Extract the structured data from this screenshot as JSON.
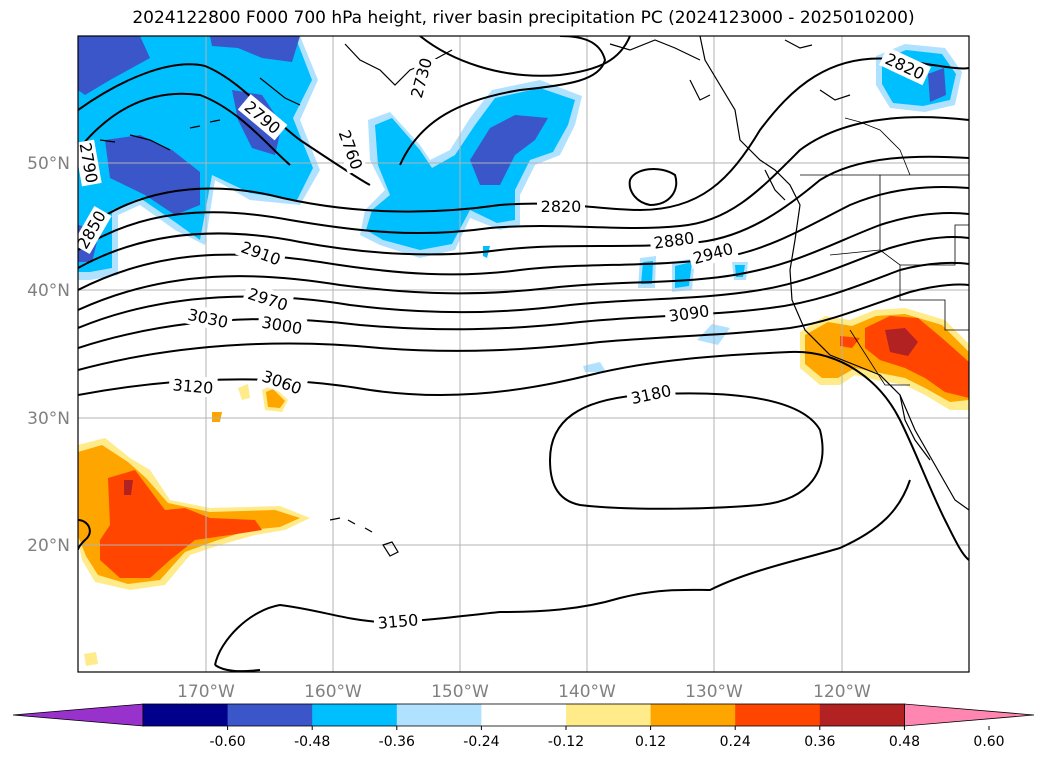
{
  "title": "2024122800 F000 700 hPa height, river basin precipitation PC (2024123000 - 2025010200)",
  "lat_labels": [
    "50°N",
    "40°N",
    "30°N",
    "20°N"
  ],
  "lon_labels": [
    "170°W",
    "160°W",
    "150°W",
    "140°W",
    "130°W",
    "120°W"
  ],
  "contour_labels": [
    "2790",
    "2790",
    "2730",
    "2760",
    "2820",
    "2850",
    "2910",
    "2820",
    "2880",
    "2940",
    "2970",
    "3030",
    "3000",
    "3090",
    "3060",
    "3120",
    "3180",
    "3150"
  ],
  "colorbar": {
    "labels": [
      "-0.60",
      "-0.48",
      "-0.36",
      "-0.24",
      "-0.12",
      "0.12",
      "0.24",
      "0.36",
      "0.48",
      "0.60"
    ],
    "colors": [
      "#9932cc",
      "#00008b",
      "#3a56c9",
      "#00bfff",
      "#b0e2ff",
      "#ffffff",
      "#ffeb8a",
      "#ffa500",
      "#ff4500",
      "#b22222",
      "#ff86b0"
    ]
  }
}
